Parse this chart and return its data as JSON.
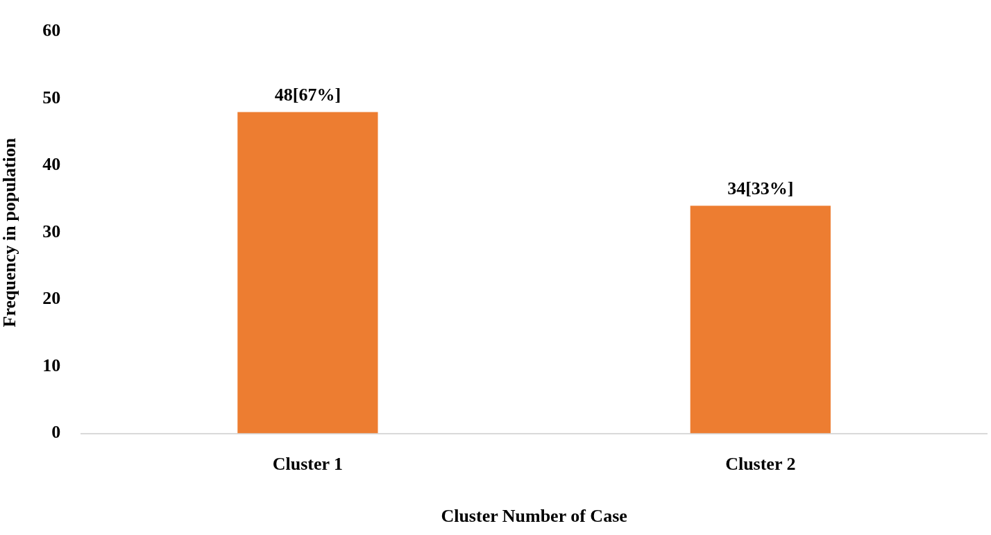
{
  "chart_data": {
    "type": "bar",
    "xlabel": "Cluster Number of Case",
    "ylabel": "Frequency in population",
    "categories": [
      "Cluster 1",
      "Cluster 2"
    ],
    "values": [
      48,
      34
    ],
    "value_labels": [
      "48[67%]",
      "34[33%]"
    ],
    "color": "#ed7d31",
    "ylim": [
      0,
      60
    ],
    "yticks": [
      0,
      10,
      20,
      30,
      40,
      50,
      60
    ],
    "grid": false,
    "legend": false
  }
}
